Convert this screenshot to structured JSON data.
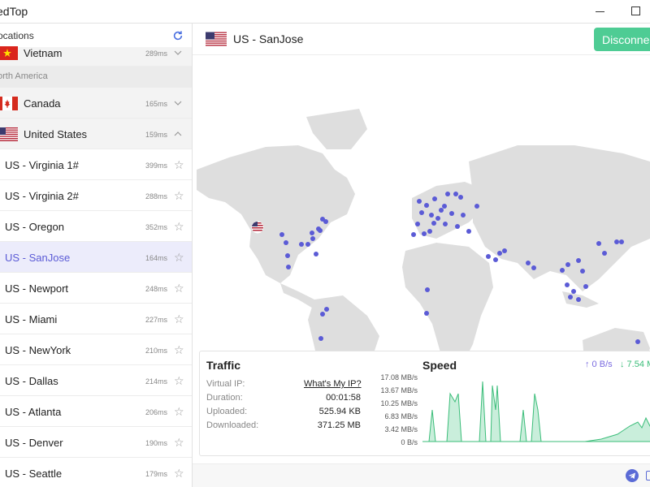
{
  "window": {
    "title": "edTop"
  },
  "sidebar": {
    "header": "ocations",
    "region": "orth America",
    "countries": [
      {
        "name": "Vietnam",
        "ping": "289ms"
      },
      {
        "name": "Canada",
        "ping": "165ms"
      },
      {
        "name": "United States",
        "ping": "159ms"
      }
    ],
    "servers": [
      {
        "name": "US - Virginia 1#",
        "ping": "399ms"
      },
      {
        "name": "US - Virginia 2#",
        "ping": "288ms"
      },
      {
        "name": "US - Oregon",
        "ping": "352ms"
      },
      {
        "name": "US - SanJose",
        "ping": "164ms"
      },
      {
        "name": "US - Newport",
        "ping": "248ms"
      },
      {
        "name": "US - Miami",
        "ping": "227ms"
      },
      {
        "name": "US - NewYork",
        "ping": "210ms"
      },
      {
        "name": "US - Dallas",
        "ping": "214ms"
      },
      {
        "name": "US - Atlanta",
        "ping": "206ms"
      },
      {
        "name": "US - Denver",
        "ping": "190ms"
      },
      {
        "name": "US - Seattle",
        "ping": "179ms"
      }
    ],
    "selected_server": "US - SanJose"
  },
  "main": {
    "title": "US - SanJose",
    "disconnect_label": "Disconnec",
    "accent_color": "#4ecc94",
    "selection_color": "#5b5bd6"
  },
  "traffic": {
    "title": "Traffic",
    "virtual_ip_label": "Virtual IP:",
    "virtual_ip_link": "What's My IP?",
    "duration_label": "Duration:",
    "duration_value": "00:01:58",
    "uploaded_label": "Uploaded:",
    "uploaded_value": "525.94 KB",
    "downloaded_label": "Downloaded:",
    "downloaded_value": "371.25 MB"
  },
  "speed": {
    "title": "Speed",
    "upload": "↑ 0 B/s",
    "download": "↓ 7.54 M",
    "yticks": [
      "17.08 MB/s",
      "13.67 MB/s",
      "10.25 MB/s",
      "6.83 MB/s",
      "3.42 MB/s",
      "0 B/s"
    ]
  },
  "icons": {
    "refresh": "refresh-icon",
    "star": "star-icon",
    "telegram": "telegram-icon"
  }
}
